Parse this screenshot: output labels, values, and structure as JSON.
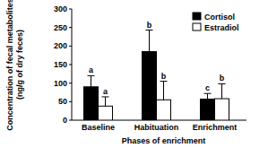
{
  "chart_data": {
    "type": "bar",
    "x_label": "Phases of enrichment",
    "y_label": "Concentration of fecal metabolites (ng/g of dry feces)",
    "categories": [
      "Baseline",
      "Habituation",
      "Enrichment"
    ],
    "series": [
      {
        "name": "Cortisol",
        "color": "#000000",
        "values": [
          90,
          185,
          57
        ],
        "errors": [
          30,
          58,
          15
        ],
        "letters": [
          "a",
          "b",
          "c"
        ]
      },
      {
        "name": "Estradiol",
        "color": "#ffffff",
        "values": [
          38,
          55,
          58
        ],
        "errors": [
          25,
          50,
          40
        ],
        "letters": [
          "a",
          "b",
          "b"
        ]
      }
    ],
    "ylim": [
      0,
      300
    ],
    "yticks": [
      0,
      50,
      100,
      150,
      200,
      250,
      300
    ],
    "grid": false,
    "legend": "upper right"
  }
}
